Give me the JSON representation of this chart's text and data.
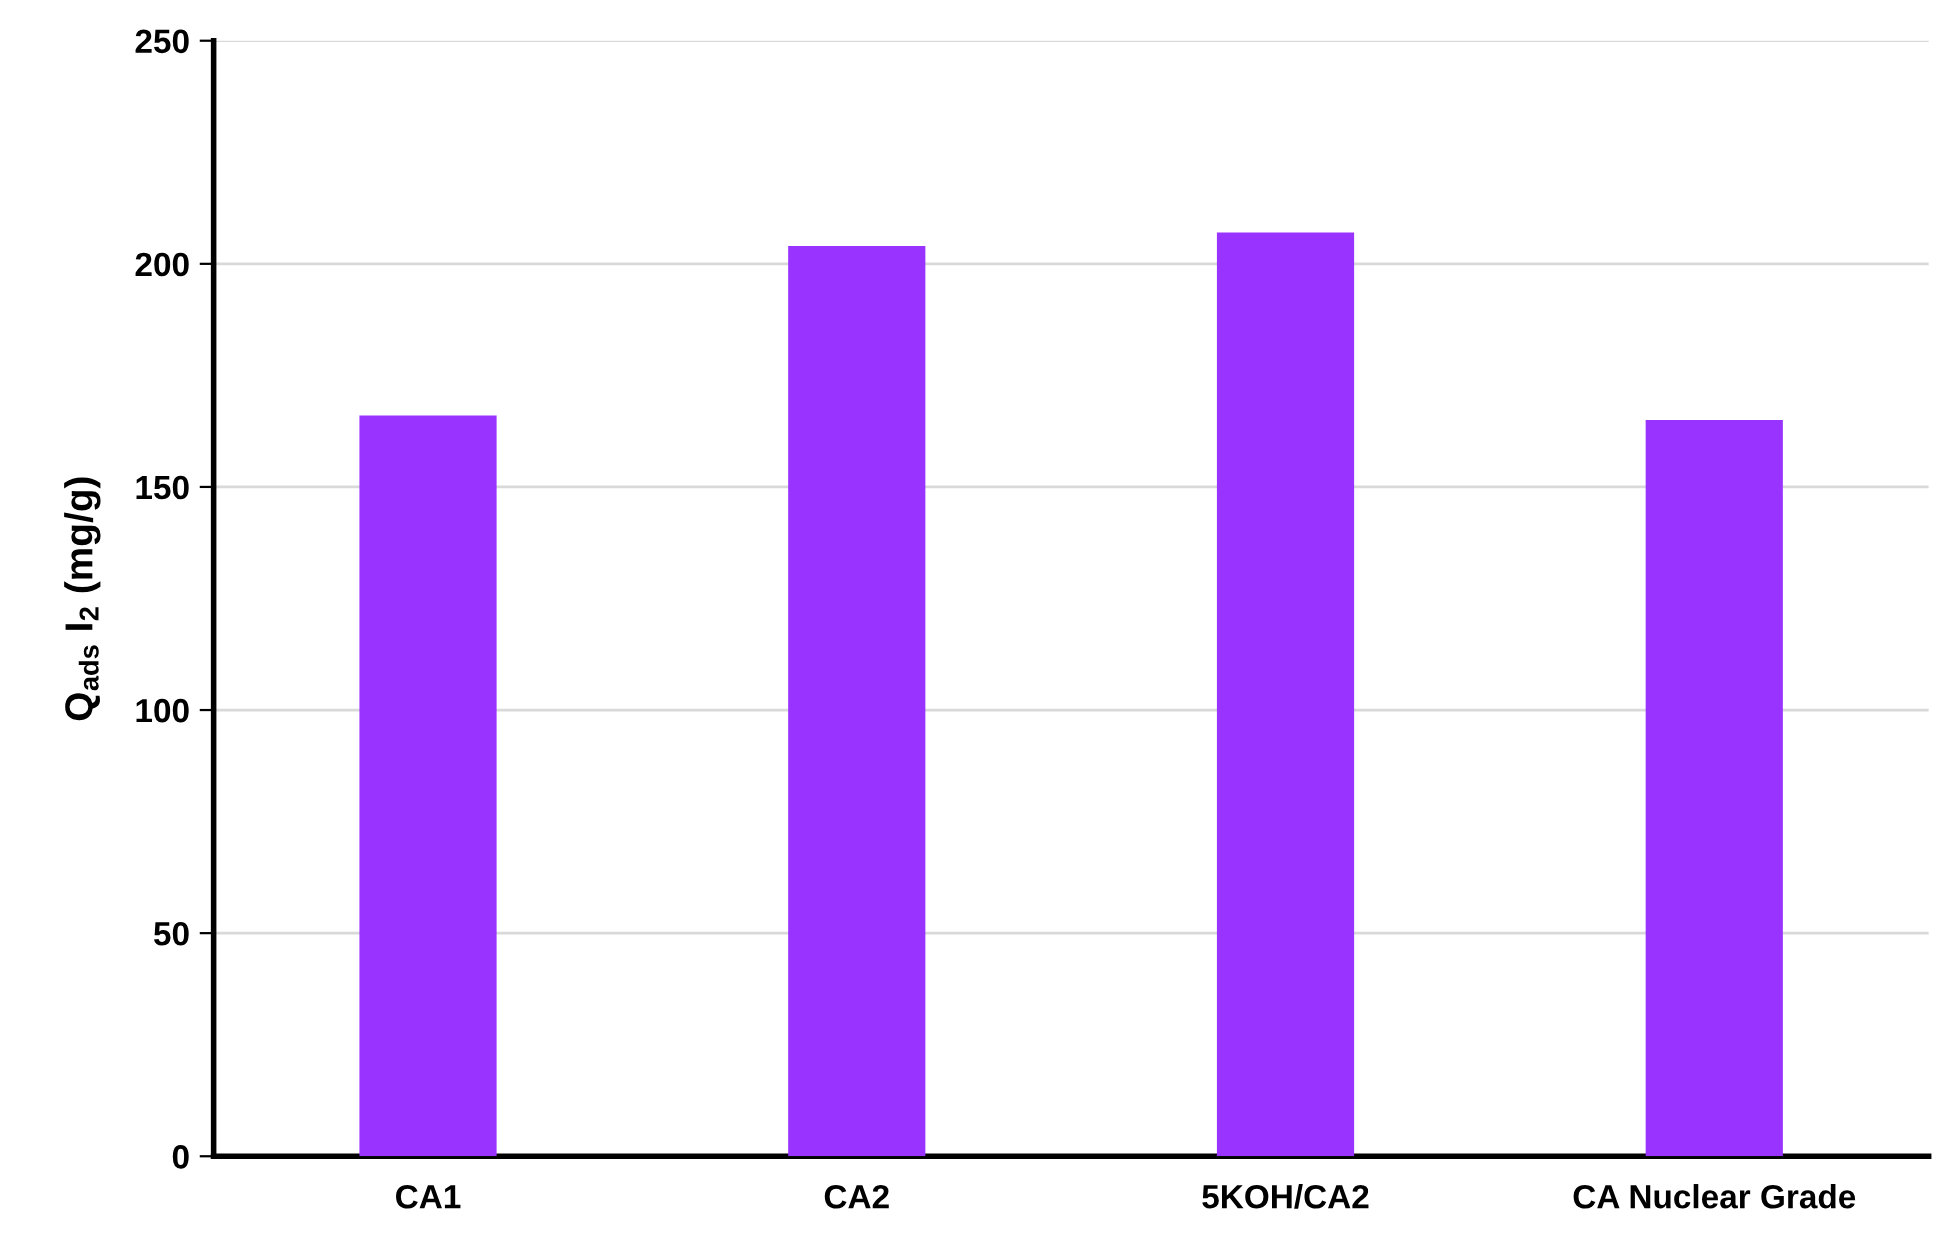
{
  "chart_data": {
    "type": "bar",
    "ylabel": "Q$_{ads}$ I$_{2}$ (mg/g)",
    "categories": [
      "CA1",
      "CA2",
      "5KOH/CA2",
      "CA Nuclear Grade"
    ],
    "values": [
      166,
      204,
      207,
      165
    ],
    "color": "#9933ff",
    "ylim": [
      0,
      250
    ],
    "yticks": [
      0,
      50,
      100,
      150,
      200,
      250
    ],
    "grid": "y"
  }
}
